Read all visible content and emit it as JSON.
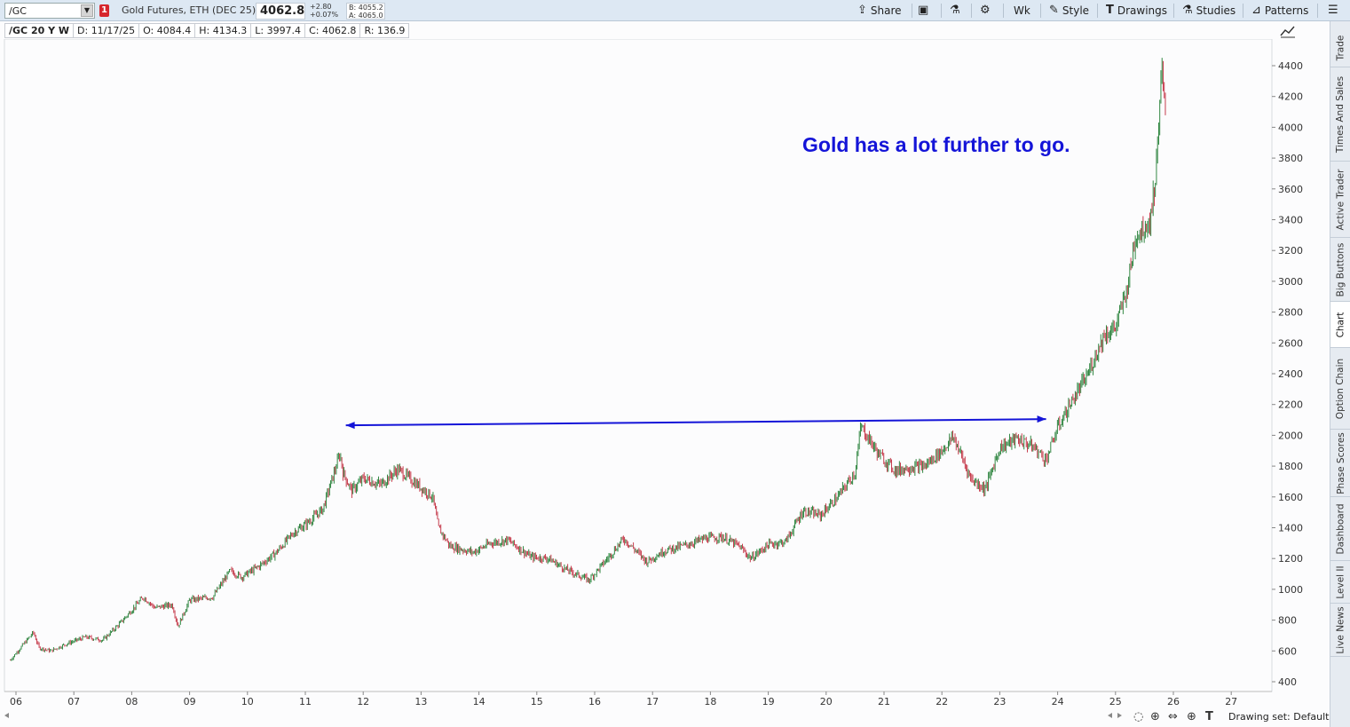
{
  "topbar": {
    "symbol": "/GC",
    "link_badge": "1",
    "description": "Gold Futures, ETH (DEC 25)",
    "last_price": "4062.8",
    "net_change": "+2.80",
    "pct_change": "+0.07%",
    "bid": "B: 4055.2",
    "ask": "A: 4065.0",
    "share_label": "Share",
    "interval_label": "Wk",
    "style_label": "Style",
    "drawings_label": "Drawings",
    "studies_label": "Studies",
    "patterns_label": "Patterns"
  },
  "infobar": {
    "title": "/GC 20 Y W",
    "date": "D: 11/17/25",
    "open": "O: 4084.4",
    "high": "H: 4134.3",
    "low": "L: 3997.4",
    "close": "C: 4062.8",
    "range": "R: 136.9"
  },
  "annotation": "Gold has a lot further to go.",
  "right_tabs": [
    "Trade",
    "Times And Sales",
    "Active Trader",
    "Big Buttons",
    "Chart",
    "Option Chain",
    "Phase Scores",
    "Dashboard",
    "Level II",
    "Live News"
  ],
  "active_tab": "Chart",
  "bottombar": {
    "drawing_set": "Drawing set: Default"
  },
  "colors": {
    "up": "#1b7a2e",
    "down": "#c0283a",
    "annotation": "#1414d8",
    "grid": "#ececf0"
  },
  "chart_data": {
    "type": "line",
    "title": "/GC 20 Y W",
    "xlabel": "",
    "ylabel": "",
    "x_ticks": [
      "06",
      "07",
      "08",
      "09",
      "10",
      "11",
      "12",
      "13",
      "14",
      "15",
      "16",
      "17",
      "18",
      "19",
      "20",
      "21",
      "22",
      "23",
      "24",
      "25",
      "26",
      "27"
    ],
    "y_ticks": [
      400,
      600,
      800,
      1000,
      1200,
      1400,
      1600,
      1800,
      2000,
      2200,
      2400,
      2600,
      2800,
      3000,
      3200,
      3400,
      3600,
      3800,
      4000,
      4200,
      4400
    ],
    "ylim": [
      300,
      4500
    ],
    "xlim": [
      2005.8,
      2027.6
    ],
    "series": [
      {
        "x": [
          2005.9,
          2006.3,
          2006.4,
          2006.6,
          2006.9,
          2007.2,
          2007.5,
          2007.8,
          2008.2,
          2008.4,
          2008.7,
          2008.8,
          2009.0,
          2009.4,
          2009.7,
          2009.9,
          2010.2,
          2010.5,
          2010.8,
          2011.0,
          2011.3,
          2011.6,
          2011.65,
          2011.8,
          2012.0,
          2012.3,
          2012.6,
          2012.9,
          2013.2,
          2013.3,
          2013.5,
          2013.9,
          2014.2,
          2014.5,
          2014.9,
          2015.2,
          2015.5,
          2015.9,
          2016.2,
          2016.5,
          2016.9,
          2017.2,
          2017.6,
          2017.9,
          2018.2,
          2018.5,
          2018.7,
          2019.0,
          2019.3,
          2019.6,
          2019.9,
          2020.2,
          2020.5,
          2020.6,
          2020.9,
          2021.2,
          2021.4,
          2021.7,
          2022.0,
          2022.2,
          2022.5,
          2022.75,
          2023.0,
          2023.3,
          2023.6,
          2023.8,
          2024.0,
          2024.2,
          2024.5,
          2024.8,
          2025.0,
          2025.2,
          2025.35,
          2025.5,
          2025.6,
          2025.7,
          2025.75,
          2025.8,
          2025.87
        ],
        "values": [
          540,
          720,
          620,
          600,
          650,
          690,
          670,
          780,
          950,
          880,
          900,
          760,
          930,
          950,
          1120,
          1080,
          1150,
          1240,
          1370,
          1420,
          1520,
          1880,
          1760,
          1640,
          1720,
          1680,
          1780,
          1690,
          1600,
          1400,
          1280,
          1240,
          1300,
          1320,
          1210,
          1200,
          1130,
          1060,
          1190,
          1330,
          1180,
          1250,
          1290,
          1330,
          1340,
          1280,
          1200,
          1290,
          1310,
          1510,
          1480,
          1600,
          1760,
          2060,
          1880,
          1770,
          1790,
          1800,
          1900,
          1990,
          1720,
          1650,
          1920,
          1980,
          1920,
          1840,
          2050,
          2190,
          2380,
          2650,
          2700,
          2950,
          3300,
          3350,
          3400,
          3700,
          4100,
          4350,
          4062
        ]
      }
    ],
    "annotation_arrow": {
      "from": [
        2011.7,
        2065
      ],
      "to": [
        2023.8,
        2105
      ]
    }
  }
}
